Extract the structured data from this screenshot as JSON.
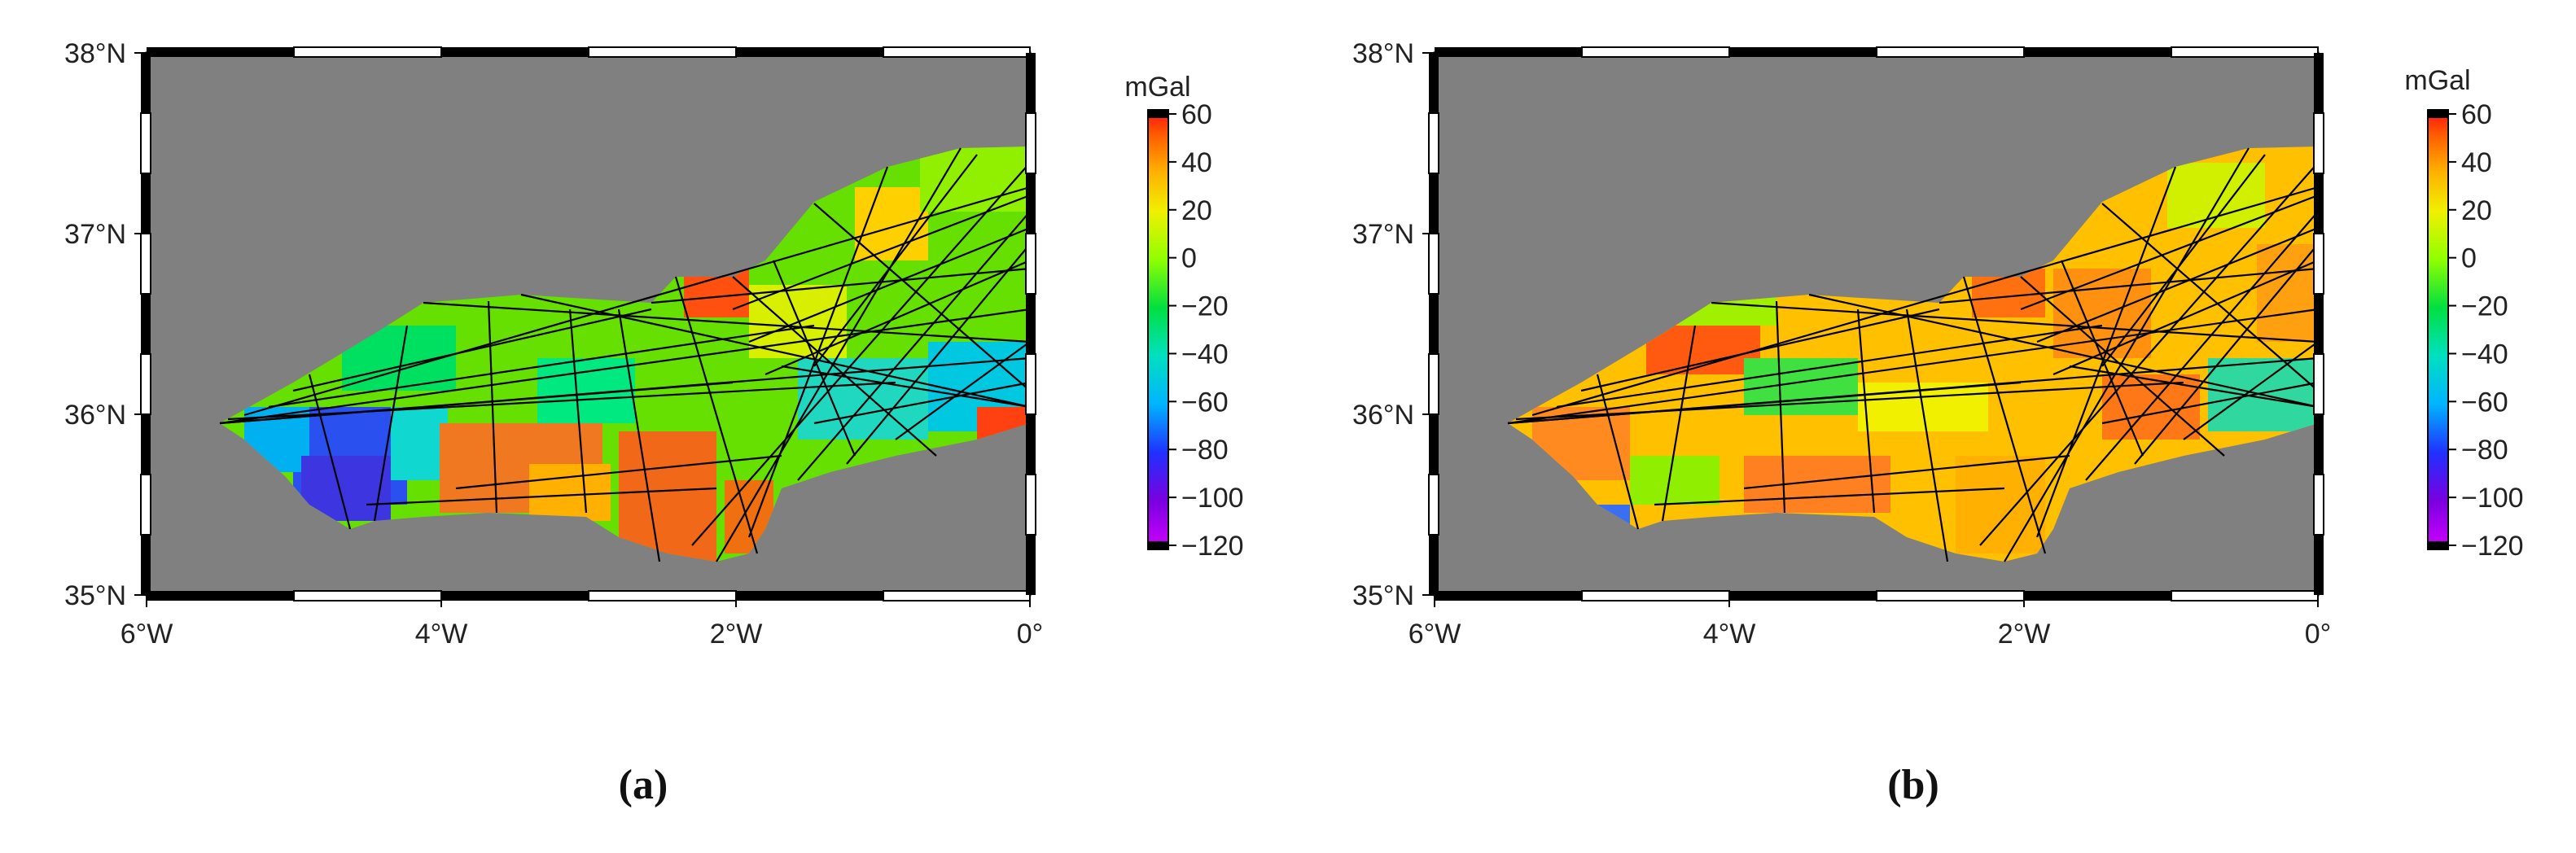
{
  "panels": [
    {
      "caption": "(a)",
      "unit": "mGal",
      "lat_labels": [
        "38°N",
        "37°N",
        "36°N",
        "35°N"
      ],
      "lon_labels": [
        "6°W",
        "4°W",
        "2°W",
        "0°"
      ],
      "colorbar_ticks": [
        "60",
        "40",
        "20",
        "0",
        "−20",
        "−40",
        "−60",
        "−80",
        "−100",
        "−120"
      ]
    },
    {
      "caption": "(b)",
      "unit": "mGal",
      "lat_labels": [
        "38°N",
        "37°N",
        "36°N",
        "35°N"
      ],
      "lon_labels": [
        "6°W",
        "4°W",
        "2°W",
        "0°"
      ],
      "colorbar_ticks": [
        "60",
        "40",
        "20",
        "0",
        "−20",
        "−40",
        "−60",
        "−80",
        "−100",
        "−120"
      ]
    }
  ],
  "map": {
    "lon_range": [
      -6,
      0
    ],
    "lat_range": [
      35,
      38
    ],
    "land_color": "#808080",
    "frame_colors": [
      "#000000",
      "#ffffff"
    ],
    "colorbar_range": [
      -120,
      60
    ],
    "colorbar_colors": [
      "#d000ff",
      "#7a00e0",
      "#2030ff",
      "#00b4ff",
      "#00e0c0",
      "#00e040",
      "#90ff00",
      "#f0f000",
      "#ffb000",
      "#ff6000",
      "#ff1010"
    ]
  }
}
